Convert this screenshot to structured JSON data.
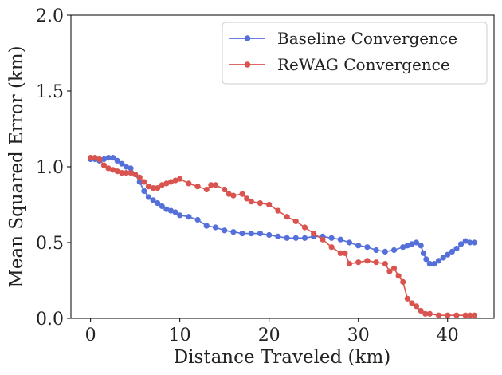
{
  "chart_data": {
    "type": "line",
    "title": "",
    "xlabel": "Distance Traveled (km)",
    "ylabel": "Mean Squared Error (km)",
    "xlim": [
      -2.2,
      45.2
    ],
    "ylim": [
      0.0,
      2.0
    ],
    "xticks": [
      0,
      10,
      20,
      30,
      40
    ],
    "yticks": [
      0.0,
      0.5,
      1.0,
      1.5,
      2.0
    ],
    "xtick_labels": [
      "0",
      "10",
      "20",
      "30",
      "40"
    ],
    "ytick_labels": [
      "0.0",
      "0.5",
      "1.0",
      "1.5",
      "2.0"
    ],
    "legend_position": "top-right",
    "series": [
      {
        "name": "Baseline Convergence",
        "color": "#5570d8",
        "x": [
          0,
          0.5,
          1,
          1.5,
          2,
          2.5,
          3,
          3.5,
          4,
          4.5,
          5,
          5.5,
          6,
          6.5,
          7,
          7.5,
          8,
          8.5,
          9,
          9.5,
          10,
          11,
          12,
          13,
          14,
          15,
          16,
          17,
          18,
          19,
          20,
          21,
          22,
          23,
          24,
          25,
          26,
          27,
          28,
          29,
          30,
          31,
          32,
          33,
          34,
          35,
          35.5,
          36,
          36.5,
          37,
          37.3,
          37.6,
          38,
          38.5,
          39,
          39.5,
          40,
          40.5,
          41,
          41.5,
          42,
          42.5,
          43
        ],
        "y": [
          1.05,
          1.05,
          1.04,
          1.05,
          1.06,
          1.06,
          1.04,
          1.02,
          1.0,
          0.99,
          0.95,
          0.9,
          0.84,
          0.8,
          0.78,
          0.76,
          0.74,
          0.72,
          0.71,
          0.7,
          0.68,
          0.67,
          0.65,
          0.61,
          0.6,
          0.58,
          0.57,
          0.56,
          0.56,
          0.56,
          0.55,
          0.54,
          0.53,
          0.53,
          0.53,
          0.54,
          0.54,
          0.53,
          0.52,
          0.5,
          0.48,
          0.47,
          0.45,
          0.44,
          0.45,
          0.47,
          0.48,
          0.49,
          0.5,
          0.48,
          0.43,
          0.39,
          0.36,
          0.36,
          0.38,
          0.4,
          0.42,
          0.44,
          0.46,
          0.49,
          0.51,
          0.5,
          0.5
        ]
      },
      {
        "name": "ReWAG Convergence",
        "color": "#d9534f",
        "x": [
          0,
          0.5,
          1,
          1.5,
          2,
          2.5,
          3,
          3.5,
          4,
          4.5,
          5,
          5.5,
          6,
          6.5,
          7,
          7.5,
          8,
          8.5,
          9,
          9.5,
          10,
          11,
          12,
          13,
          13.5,
          14,
          15,
          15.5,
          16,
          17,
          17.5,
          18,
          19,
          20,
          21,
          22,
          23,
          24,
          25,
          26,
          27,
          28,
          28.5,
          29,
          30,
          31,
          32,
          33,
          33.5,
          34,
          34.5,
          35,
          35.5,
          36,
          36.5,
          37,
          37.5,
          38,
          39,
          40,
          41,
          42,
          42.5,
          43
        ],
        "y": [
          1.06,
          1.06,
          1.05,
          1.01,
          0.99,
          0.98,
          0.97,
          0.96,
          0.96,
          0.96,
          0.95,
          0.93,
          0.9,
          0.87,
          0.86,
          0.86,
          0.88,
          0.89,
          0.9,
          0.91,
          0.92,
          0.89,
          0.87,
          0.85,
          0.88,
          0.88,
          0.85,
          0.82,
          0.81,
          0.82,
          0.79,
          0.77,
          0.76,
          0.75,
          0.71,
          0.67,
          0.64,
          0.6,
          0.56,
          0.52,
          0.47,
          0.43,
          0.43,
          0.36,
          0.37,
          0.38,
          0.37,
          0.36,
          0.31,
          0.33,
          0.28,
          0.24,
          0.13,
          0.1,
          0.08,
          0.05,
          0.03,
          0.03,
          0.02,
          0.02,
          0.02,
          0.02,
          0.02,
          0.02
        ]
      }
    ]
  }
}
